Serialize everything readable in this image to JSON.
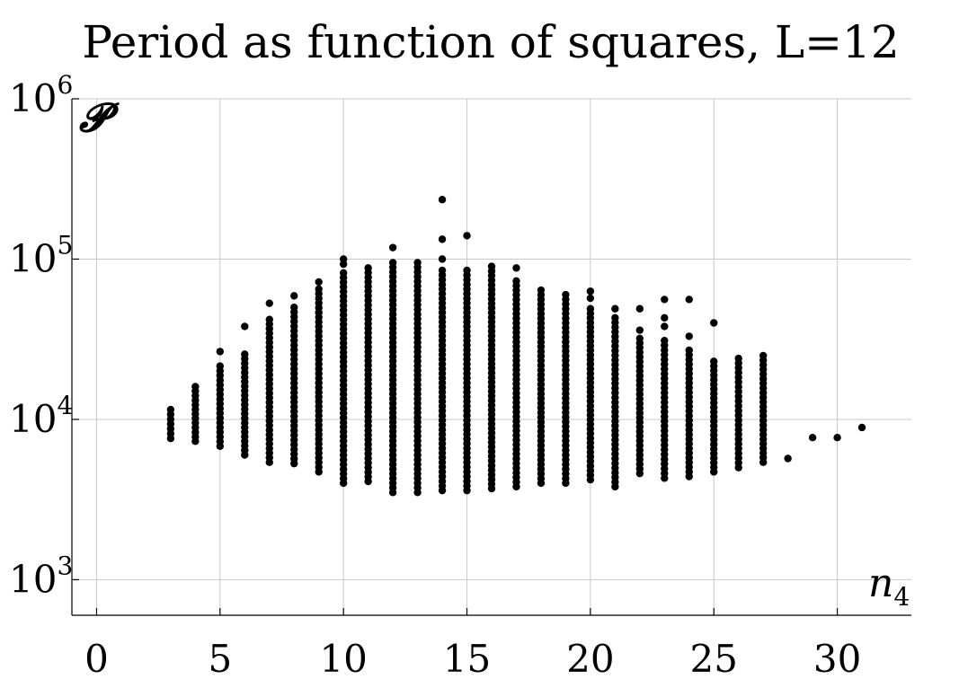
{
  "chart_data": {
    "type": "scatter",
    "title": "Period as function of squares, L=12",
    "xlabel": "n",
    "xlabel_sub": "4",
    "ylabel": "𝓟",
    "xlim": [
      -1,
      33
    ],
    "ylim": [
      600,
      1000000
    ],
    "yscale": "log",
    "grid": true,
    "x_ticks": [
      {
        "value": 0,
        "label": "0"
      },
      {
        "value": 5,
        "label": "5"
      },
      {
        "value": 10,
        "label": "10"
      },
      {
        "value": 15,
        "label": "15"
      },
      {
        "value": 20,
        "label": "20"
      },
      {
        "value": 25,
        "label": "25"
      },
      {
        "value": 30,
        "label": "30"
      }
    ],
    "y_ticks": [
      {
        "value": 1000,
        "base": "10",
        "exp": "3"
      },
      {
        "value": 10000,
        "base": "10",
        "exp": "4"
      },
      {
        "value": 100000,
        "base": "10",
        "exp": "5"
      },
      {
        "value": 1000000,
        "base": "10",
        "exp": "6"
      }
    ],
    "columns": [
      {
        "x": 3,
        "min": 7600,
        "max": 11500,
        "outliers": []
      },
      {
        "x": 4,
        "min": 7300,
        "max": 16000,
        "outliers": []
      },
      {
        "x": 5,
        "min": 6800,
        "max": 21500,
        "outliers": [
          26500
        ]
      },
      {
        "x": 6,
        "min": 6000,
        "max": 25500,
        "outliers": [
          38000
        ]
      },
      {
        "x": 7,
        "min": 5400,
        "max": 42000,
        "outliers": [
          53000
        ]
      },
      {
        "x": 8,
        "min": 5300,
        "max": 50000,
        "outliers": [
          59000
        ]
      },
      {
        "x": 9,
        "min": 4700,
        "max": 65000,
        "outliers": [
          72000
        ]
      },
      {
        "x": 10,
        "min": 4000,
        "max": 82000,
        "outliers": [
          93000,
          100000
        ]
      },
      {
        "x": 11,
        "min": 4100,
        "max": 88000,
        "outliers": []
      },
      {
        "x": 12,
        "min": 3500,
        "max": 95000,
        "outliers": [
          118000
        ]
      },
      {
        "x": 13,
        "min": 3500,
        "max": 95000,
        "outliers": []
      },
      {
        "x": 14,
        "min": 3600,
        "max": 85000,
        "outliers": [
          100000,
          133000,
          235000
        ]
      },
      {
        "x": 15,
        "min": 3600,
        "max": 85000,
        "outliers": [
          140000
        ]
      },
      {
        "x": 16,
        "min": 3700,
        "max": 90000,
        "outliers": []
      },
      {
        "x": 17,
        "min": 3800,
        "max": 73000,
        "outliers": [
          88000
        ]
      },
      {
        "x": 18,
        "min": 4000,
        "max": 64000,
        "outliers": []
      },
      {
        "x": 19,
        "min": 4000,
        "max": 60000,
        "outliers": []
      },
      {
        "x": 20,
        "min": 4200,
        "max": 49000,
        "outliers": [
          57000,
          63000
        ]
      },
      {
        "x": 21,
        "min": 3800,
        "max": 43000,
        "outliers": [
          49000
        ]
      },
      {
        "x": 22,
        "min": 4600,
        "max": 32000,
        "outliers": [
          36000,
          49000
        ]
      },
      {
        "x": 23,
        "min": 4300,
        "max": 31000,
        "outliers": [
          38000,
          43000,
          56000
        ]
      },
      {
        "x": 24,
        "min": 4400,
        "max": 27000,
        "outliers": [
          33000,
          56000
        ]
      },
      {
        "x": 25,
        "min": 4700,
        "max": 23000,
        "outliers": [
          40000
        ]
      },
      {
        "x": 26,
        "min": 5000,
        "max": 24000,
        "outliers": []
      },
      {
        "x": 27,
        "min": 5400,
        "max": 25000,
        "outliers": []
      },
      {
        "x": 28,
        "min": 5700,
        "max": 5700,
        "outliers": []
      },
      {
        "x": 29,
        "min": 7700,
        "max": 7700,
        "outliers": []
      },
      {
        "x": 30,
        "min": 7700,
        "max": 7700,
        "outliers": []
      },
      {
        "x": 31,
        "min": 8700,
        "max": 8900,
        "outliers": []
      }
    ]
  }
}
